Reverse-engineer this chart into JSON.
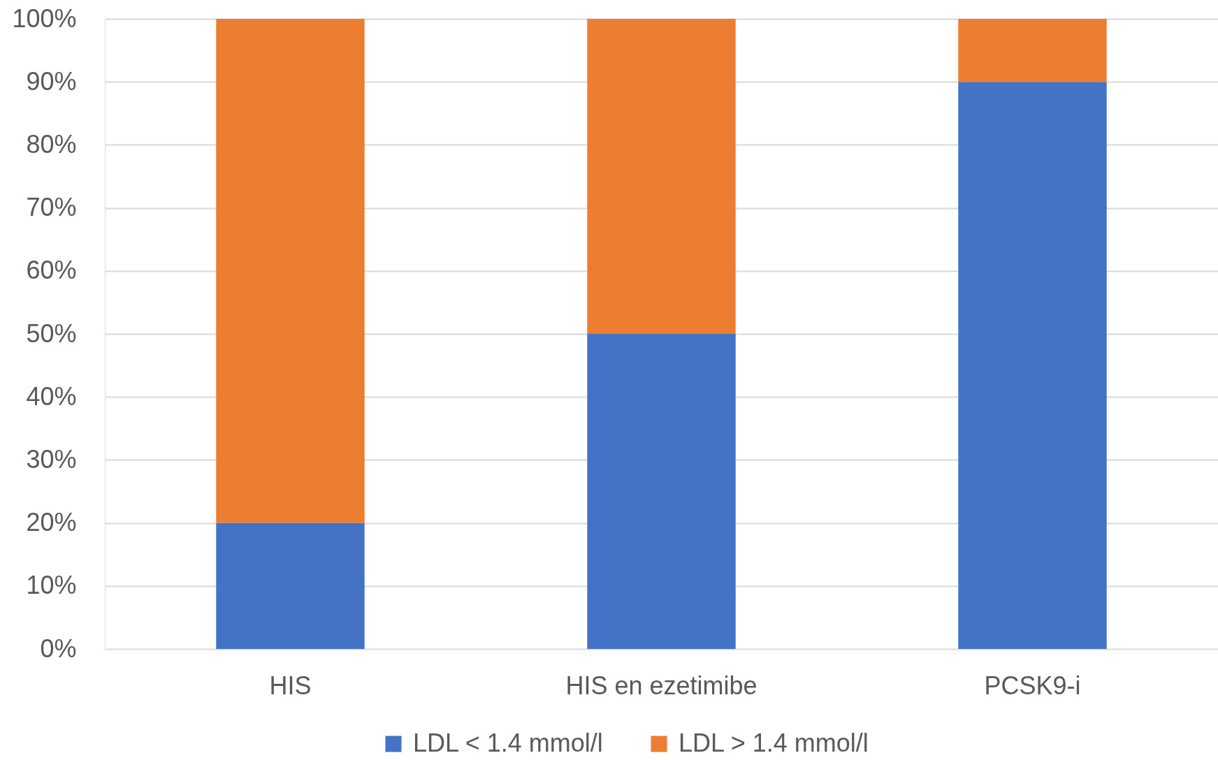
{
  "chart_data": {
    "type": "bar",
    "stacked": true,
    "categories": [
      "HIS",
      "HIS en ezetimibe",
      "PCSK9-i"
    ],
    "series": [
      {
        "name": "LDL < 1.4 mmol/l",
        "color": "#4472c4",
        "values": [
          20,
          50,
          90
        ]
      },
      {
        "name": "LDL > 1.4 mmol/l",
        "color": "#ed7d31",
        "values": [
          80,
          50,
          10
        ]
      }
    ],
    "ylim": [
      0,
      100
    ],
    "yticks": [
      {
        "value": 0,
        "label": "0%"
      },
      {
        "value": 10,
        "label": "10%"
      },
      {
        "value": 20,
        "label": "20%"
      },
      {
        "value": 30,
        "label": "30%"
      },
      {
        "value": 40,
        "label": "40%"
      },
      {
        "value": 50,
        "label": "50%"
      },
      {
        "value": 60,
        "label": "60%"
      },
      {
        "value": 70,
        "label": "70%"
      },
      {
        "value": 80,
        "label": "80%"
      },
      {
        "value": 90,
        "label": "90%"
      },
      {
        "value": 100,
        "label": "100%"
      }
    ],
    "grid": "y",
    "legend": "bottom"
  }
}
